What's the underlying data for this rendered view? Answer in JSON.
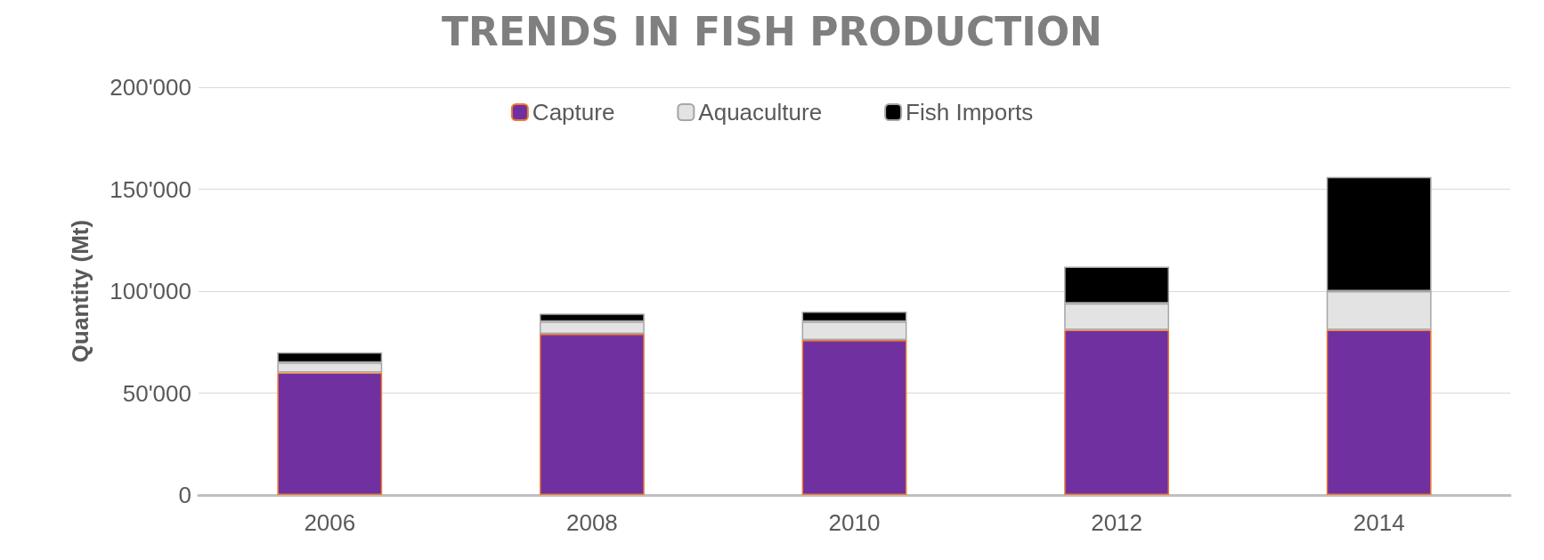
{
  "chart_data": {
    "type": "bar",
    "title": "TRENDS IN FISH PRODUCTION",
    "ylabel": "Quantity (Mt)",
    "categories": [
      "2006",
      "2008",
      "2010",
      "2012",
      "2014"
    ],
    "stacked": true,
    "series": [
      {
        "name": "Capture",
        "color": "#7030a0",
        "values": [
          60000,
          79000,
          76000,
          81000,
          81000
        ]
      },
      {
        "name": "Aquaculture",
        "color": "#e3e3e3",
        "values": [
          5000,
          6000,
          9000,
          13000,
          19000
        ]
      },
      {
        "name": "Fish Imports",
        "color": "#000000",
        "values": [
          5000,
          4000,
          5000,
          18000,
          56000
        ]
      }
    ],
    "ylim": [
      0,
      200000
    ],
    "yticks": [
      {
        "value": 0,
        "label": "0"
      },
      {
        "value": 50000,
        "label": "50'000"
      },
      {
        "value": 100000,
        "label": "100'000"
      },
      {
        "value": 150000,
        "label": "150'000"
      },
      {
        "value": 200000,
        "label": "200'000"
      }
    ],
    "grid": "y",
    "legend": "top"
  }
}
